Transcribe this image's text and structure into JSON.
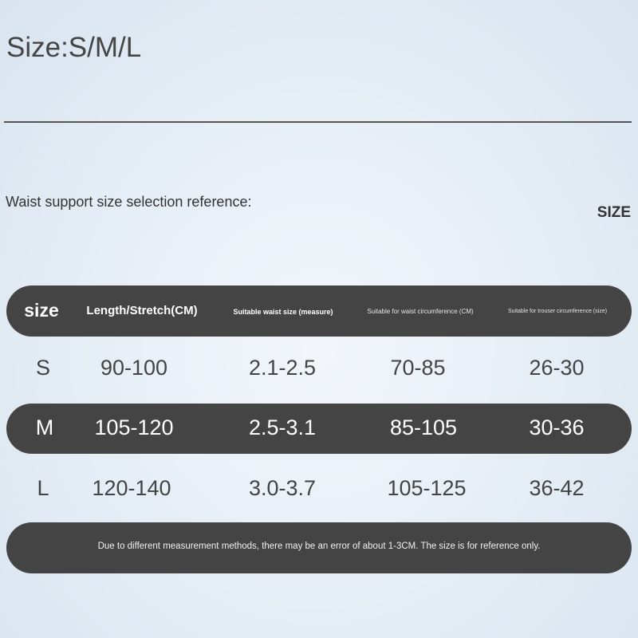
{
  "title": "Size:S/M/L",
  "subtitle": "Waist support size selection reference:",
  "size_label": "SIZE",
  "table": {
    "headers": [
      "size",
      "Length/Stretch(CM)",
      "Suitable waist size (measure)",
      "Suitable for waist circumference (CM)",
      "Suitable for trouser circumference (size)"
    ],
    "rows": [
      [
        "S",
        "90-100",
        "2.1-2.5",
        "70-85",
        "26-30"
      ],
      [
        "M",
        "105-120",
        "2.5-3.1",
        "85-105",
        "30-36"
      ],
      [
        "L",
        "120-140",
        "3.0-3.7",
        "105-125",
        "36-42"
      ]
    ]
  },
  "footnote": "Due to different measurement methods, there may be an error of about 1-3CM. The size is for reference only.",
  "colors": {
    "bar": "#444444",
    "text": "#3e3e3e",
    "background": "#e6eef6"
  }
}
